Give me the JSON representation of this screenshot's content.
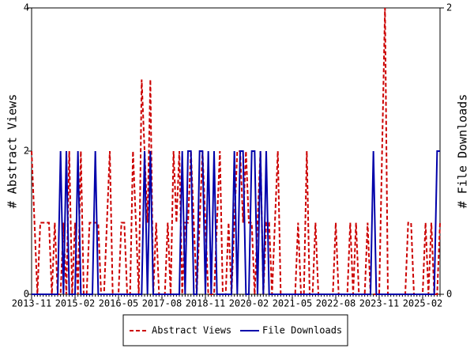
{
  "chart_data": {
    "type": "line",
    "y_label": "# Abstract Views",
    "y2_label": "# File Downloads",
    "categories": [
      "2013-11",
      null,
      null,
      null,
      null,
      null,
      null,
      null,
      null,
      null,
      null,
      null,
      null,
      null,
      null,
      "2015-02",
      null,
      null,
      null,
      null,
      null,
      null,
      null,
      null,
      null,
      null,
      null,
      null,
      null,
      null,
      "2016-05",
      null,
      null,
      null,
      null,
      null,
      null,
      null,
      null,
      null,
      null,
      null,
      null,
      null,
      null,
      "2017-08",
      null,
      null,
      null,
      null,
      null,
      null,
      null,
      null,
      null,
      null,
      null,
      null,
      null,
      null,
      "2018-11",
      null,
      null,
      null,
      null,
      null,
      null,
      null,
      null,
      null,
      null,
      null,
      null,
      null,
      null,
      "2020-02",
      null,
      null,
      null,
      null,
      null,
      null,
      null,
      null,
      null,
      null,
      null,
      null,
      null,
      null,
      "2021-05",
      null,
      null,
      null,
      null,
      null,
      null,
      null,
      null,
      null,
      null,
      null,
      null,
      null,
      null,
      "2022-08",
      null,
      null,
      null,
      null,
      null,
      null,
      null,
      null,
      null,
      null,
      null,
      null,
      null,
      null,
      "2023-11",
      null,
      null,
      null,
      null,
      null,
      null,
      null,
      null,
      null,
      null,
      null,
      null,
      null,
      null,
      "2025-02",
      null,
      null,
      null,
      null,
      null,
      null
    ],
    "series": [
      {
        "name": "Abstract Views",
        "color": "#cc0000",
        "dash": true,
        "values": [
          2,
          1,
          0,
          1,
          1,
          1,
          1,
          0,
          1,
          0,
          0,
          1,
          0,
          2,
          0,
          1,
          0,
          2,
          0,
          0,
          1,
          1,
          1,
          1,
          0,
          0,
          1,
          2,
          0,
          0,
          0,
          1,
          1,
          0,
          0,
          2,
          1,
          0,
          3,
          2,
          1,
          3,
          0,
          1,
          0,
          0,
          0,
          1,
          0,
          2,
          1,
          2,
          0,
          1,
          1,
          2,
          1,
          0,
          1,
          2,
          1,
          0,
          0,
          0,
          1,
          2,
          0,
          0,
          1,
          0,
          1,
          2,
          2,
          1,
          2,
          1,
          1,
          0,
          1,
          2,
          0,
          1,
          1,
          0,
          1,
          2,
          0,
          0,
          0,
          0,
          0,
          0,
          1,
          0,
          0,
          2,
          0,
          0,
          1,
          0,
          0,
          0,
          0,
          0,
          0,
          1,
          0,
          0,
          0,
          0,
          1,
          0,
          1,
          0,
          0,
          0,
          1,
          0,
          0,
          0,
          0,
          2,
          4,
          0,
          0,
          0,
          0,
          0,
          0,
          0,
          1,
          1,
          0,
          0,
          0,
          0,
          1,
          0,
          1,
          0,
          0,
          1
        ]
      },
      {
        "name": "File Downloads",
        "color": "#0000aa",
        "axis": "y2",
        "values": [
          0,
          0,
          0,
          0,
          0,
          0,
          0,
          0,
          0,
          0,
          1,
          0,
          1,
          0,
          0,
          0,
          1,
          0,
          0,
          0,
          0,
          0,
          1,
          0,
          0,
          0,
          0,
          0,
          0,
          0,
          0,
          0,
          0,
          0,
          0,
          0,
          0,
          0,
          0,
          1,
          0,
          1,
          0,
          0,
          0,
          0,
          0,
          0,
          0,
          0,
          0,
          0,
          1,
          0,
          1,
          1,
          0,
          0,
          1,
          1,
          0,
          1,
          0,
          1,
          0,
          0,
          0,
          0,
          0,
          0,
          1,
          0,
          1,
          1,
          0,
          0,
          1,
          1,
          0,
          1,
          0,
          1,
          0,
          0,
          0,
          0,
          0,
          0,
          0,
          0,
          0,
          0,
          0,
          0,
          0,
          0,
          0,
          0,
          0,
          0,
          0,
          0,
          0,
          0,
          0,
          0,
          0,
          0,
          0,
          0,
          0,
          0,
          0,
          0,
          0,
          0,
          0,
          0,
          1,
          0,
          0,
          0,
          0,
          0,
          0,
          0,
          0,
          0,
          0,
          0,
          0,
          0,
          0,
          0,
          0,
          0,
          0,
          0,
          0,
          0,
          1,
          1
        ]
      }
    ],
    "ylim": [
      0,
      4
    ],
    "yticks": [
      0,
      2,
      4
    ],
    "y2lim": [
      0,
      2
    ],
    "y2ticks": [
      0,
      2
    ]
  }
}
